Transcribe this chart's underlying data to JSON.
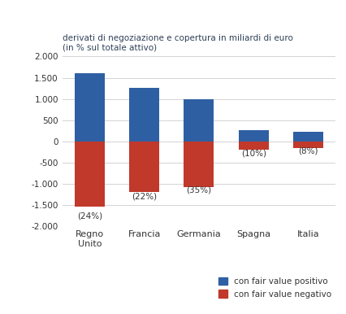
{
  "categories": [
    "Regno\nUnito",
    "Francia",
    "Germania",
    "Spagna",
    "Italia"
  ],
  "positive_values": [
    1600,
    1260,
    1000,
    260,
    230
  ],
  "negative_values": [
    -1550,
    -1200,
    -1080,
    -200,
    -160
  ],
  "percentage_labels": [
    "(24%)",
    "(22%)",
    "(35%)",
    "(10%)",
    "(8%)"
  ],
  "label_y_positions": [
    -1850,
    -1390,
    -1250,
    -380,
    -330
  ],
  "blue_color": "#2E5FA3",
  "red_color": "#C0392B",
  "title_line1": "derivati di negoziazione e copertura in miliardi di euro",
  "title_line2": "(in % sul totale attivo)",
  "legend_positive": "con fair value positivo",
  "legend_negative": "con fair value negativo",
  "ylim": [
    -2000,
    2000
  ],
  "yticks": [
    -2000,
    -1500,
    -1000,
    -500,
    0,
    500,
    1000,
    1500,
    2000
  ],
  "ytick_labels": [
    "-2.000",
    "-1.500",
    "-1.000",
    "-500",
    "0",
    "500",
    "1.000",
    "1.500",
    "2.000"
  ],
  "title_color": "#2E4057",
  "axis_label_color": "#333333",
  "background_color": "#ffffff",
  "bar_width": 0.55
}
